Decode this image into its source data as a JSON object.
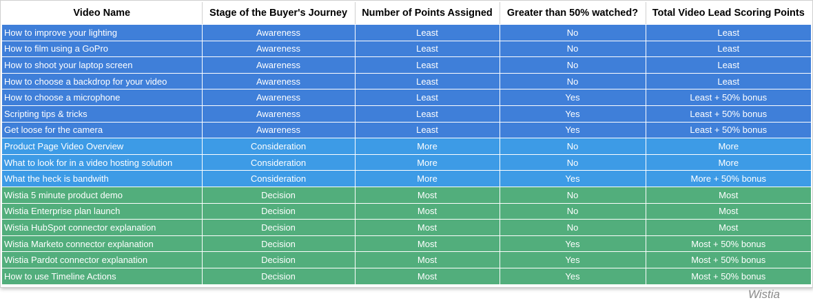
{
  "table": {
    "headers": [
      "Video Name",
      "Stage of the Buyer's Journey",
      "Number of Points Assigned",
      "Greater than 50% watched?",
      "Total Video Lead Scoring Points"
    ],
    "stage_colors": {
      "Awareness": "#3f7fd9",
      "Consideration": "#3d9be6",
      "Decision": "#52ae7c"
    },
    "rows": [
      [
        "How to improve your lighting",
        "Awareness",
        "Least",
        "No",
        "Least"
      ],
      [
        "How to film using a GoPro",
        "Awareness",
        "Least",
        "No",
        "Least"
      ],
      [
        "How to shoot your laptop screen",
        "Awareness",
        "Least",
        "No",
        "Least"
      ],
      [
        "How to choose a backdrop for your video",
        "Awareness",
        "Least",
        "No",
        "Least"
      ],
      [
        "How to choose a microphone",
        "Awareness",
        "Least",
        "Yes",
        "Least + 50% bonus"
      ],
      [
        "Scripting tips & tricks",
        "Awareness",
        "Least",
        "Yes",
        "Least + 50% bonus"
      ],
      [
        "Get loose for the camera",
        "Awareness",
        "Least",
        "Yes",
        "Least + 50% bonus"
      ],
      [
        "Product Page Video Overview",
        "Consideration",
        "More",
        "No",
        "More"
      ],
      [
        "What to look for in a video hosting solution",
        "Consideration",
        "More",
        "No",
        "More"
      ],
      [
        "What the heck is bandwith",
        "Consideration",
        "More",
        "Yes",
        "More + 50% bonus"
      ],
      [
        "Wistia 5 minute product demo",
        "Decision",
        "Most",
        "No",
        "Most"
      ],
      [
        "Wistia Enterprise plan launch",
        "Decision",
        "Most",
        "No",
        "Most"
      ],
      [
        "Wistia HubSpot connector explanation",
        "Decision",
        "Most",
        "No",
        "Most"
      ],
      [
        "Wistia Marketo connector explanation",
        "Decision",
        "Most",
        "Yes",
        "Most + 50% bonus"
      ],
      [
        "Wistia Pardot connector explanation",
        "Decision",
        "Most",
        "Yes",
        "Most + 50% bonus"
      ],
      [
        "How to use Timeline Actions",
        "Decision",
        "Most",
        "Yes",
        "Most + 50% bonus"
      ]
    ]
  },
  "watermark": "Wistia"
}
